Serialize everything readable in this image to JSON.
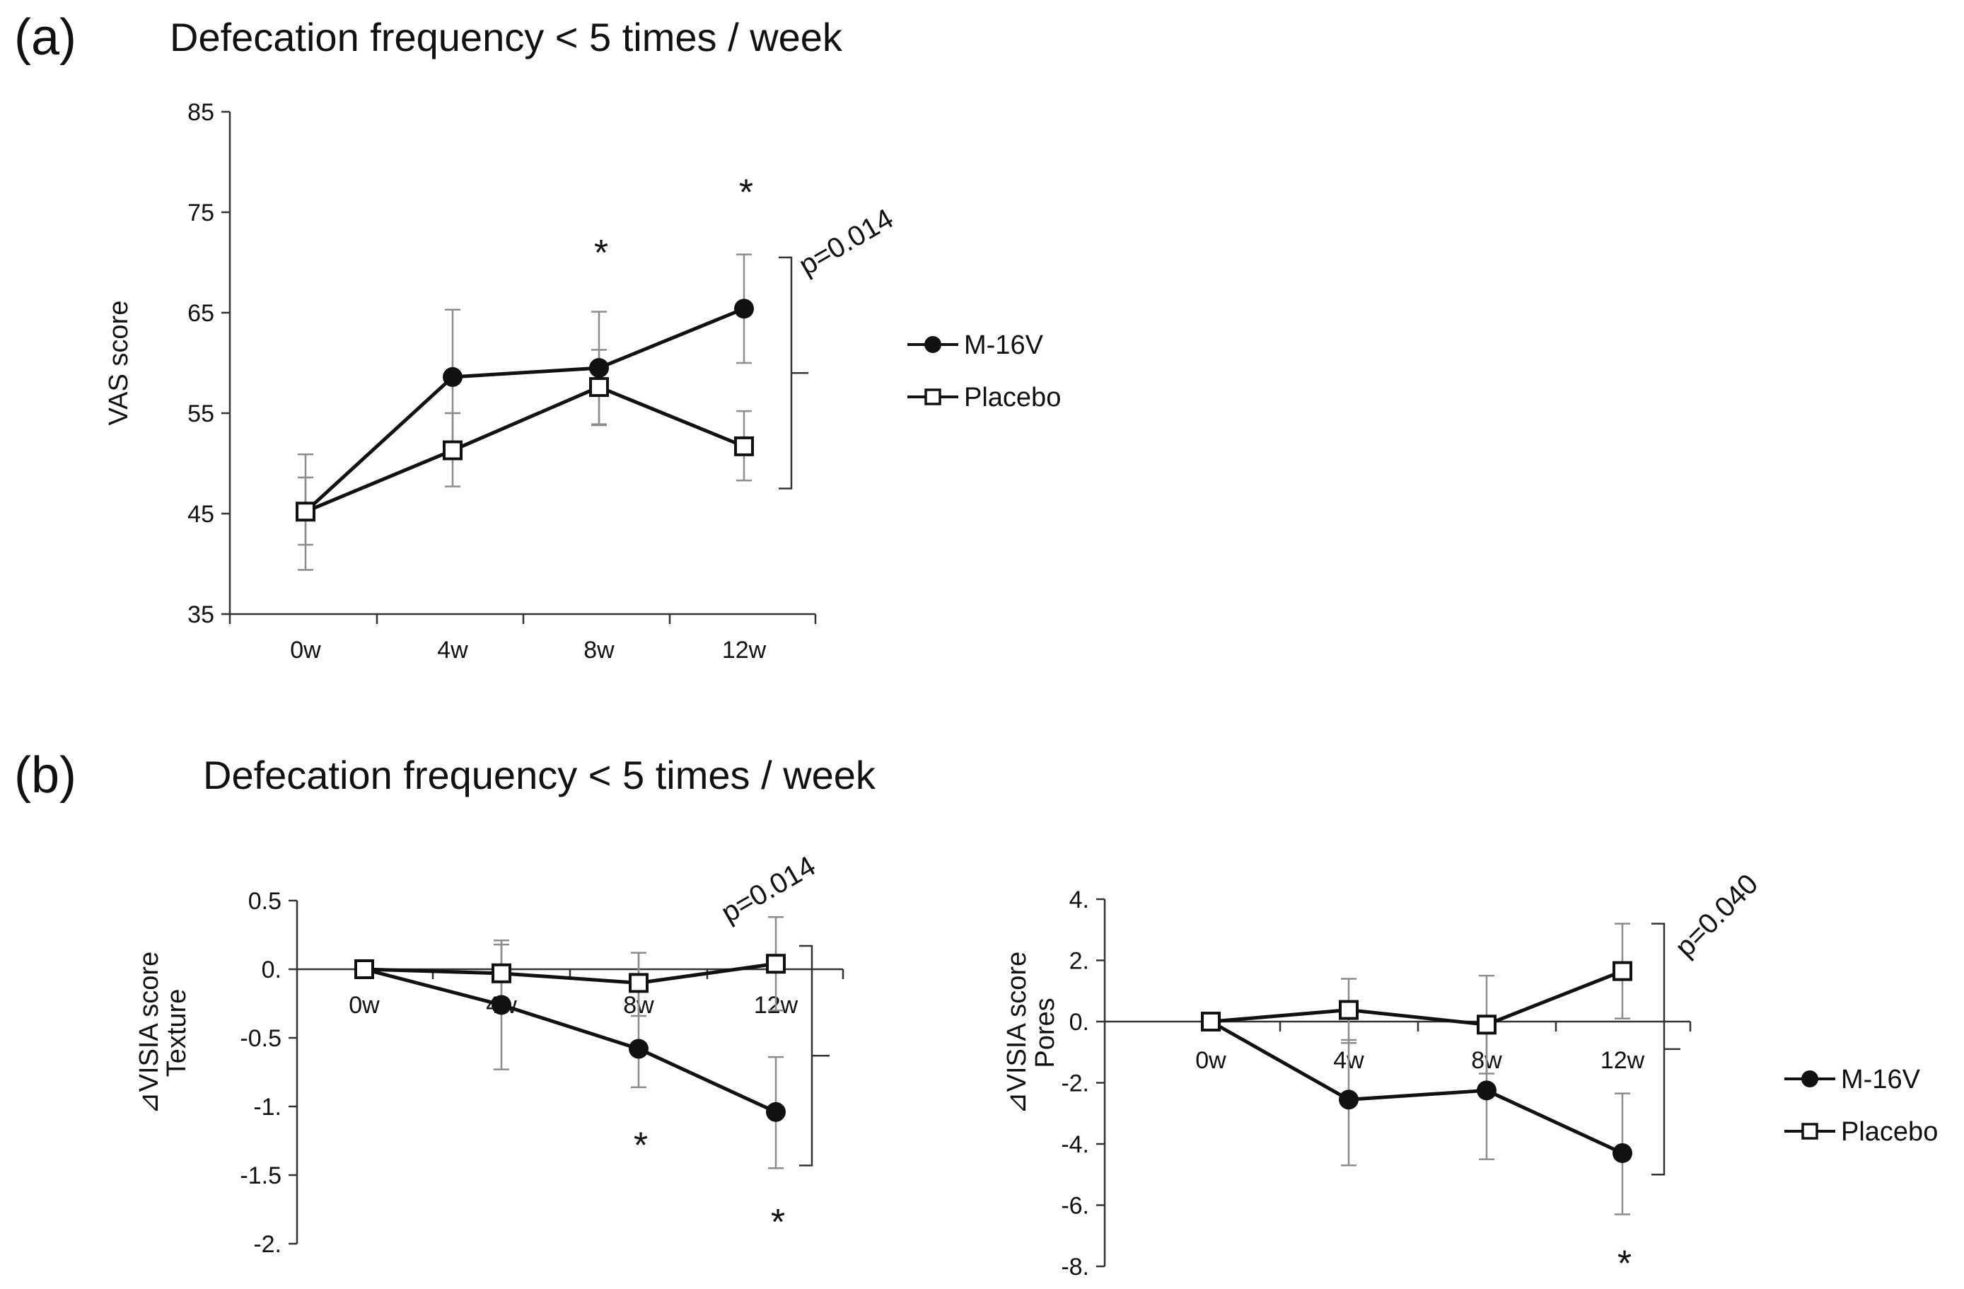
{
  "panel_a": {
    "letter": "(a)",
    "title": "Defecation frequency < 5 times / week"
  },
  "panel_b": {
    "letter": "(b)",
    "title": "Defecation frequency < 5 times / week"
  },
  "colors": {
    "line": "#111111",
    "errorbar": "#8c8c8c",
    "axis": "#333333"
  },
  "chart_data": [
    {
      "id": "vas",
      "type": "line",
      "title": "Defecation frequency < 5 times / week",
      "xlabel": "",
      "ylabel": "VAS score",
      "categories": [
        "0w",
        "4w",
        "8w",
        "12w"
      ],
      "ylim": [
        35,
        85
      ],
      "yticks": [
        35,
        45,
        55,
        65,
        75,
        85
      ],
      "ytick_labels": [
        "35",
        "45",
        "55",
        "65",
        "75",
        "85"
      ],
      "series": [
        {
          "name": "M-16V",
          "marker": "filled-circle",
          "values": [
            45.2,
            58.6,
            59.5,
            65.4
          ],
          "err_upper": [
            50.9,
            65.3,
            65.1,
            70.8
          ],
          "err_lower": [
            39.4,
            51.8,
            53.8,
            60.0
          ]
        },
        {
          "name": "Placebo",
          "marker": "open-square",
          "values": [
            45.2,
            51.3,
            57.6,
            51.7
          ],
          "err_upper": [
            48.6,
            55.0,
            61.3,
            55.2
          ],
          "err_lower": [
            41.9,
            47.7,
            53.9,
            48.3
          ]
        }
      ],
      "annotations": [
        {
          "text": "*",
          "category": "8w",
          "y": 71
        },
        {
          "text": "*",
          "category": "12w",
          "y": 77
        }
      ],
      "bracket": {
        "p_text": "p=0.014",
        "y_top": 70.5,
        "y_bottom": 47.5
      }
    },
    {
      "id": "texture",
      "type": "line",
      "xlabel": "",
      "ylabel": "⊿VISIA score",
      "ylabel2": "Texture",
      "categories": [
        "0w",
        "4w",
        "8w",
        "12w"
      ],
      "ylim": [
        -2.0,
        0.5
      ],
      "yticks": [
        -2.0,
        -1.5,
        -1.0,
        -0.5,
        0.0,
        0.5
      ],
      "ytick_labels": [
        "-2.",
        "-1.5",
        "-1.",
        "-0.5",
        "0.",
        "0.5"
      ],
      "series": [
        {
          "name": "M-16V",
          "marker": "filled-circle",
          "values": [
            0.0,
            -0.26,
            -0.58,
            -1.04
          ],
          "err_upper": [
            0.0,
            0.18,
            0.12,
            -0.64
          ],
          "err_lower": [
            0.0,
            -0.73,
            -0.86,
            -1.45
          ]
        },
        {
          "name": "Placebo",
          "marker": "open-square",
          "values": [
            0.0,
            -0.03,
            -0.1,
            0.04
          ],
          "err_upper": [
            0.0,
            0.21,
            0.12,
            0.38
          ],
          "err_lower": [
            0.0,
            -0.27,
            -0.34,
            -0.3
          ]
        }
      ],
      "annotations": [
        {
          "text": "*",
          "category": "8w",
          "y": -1.28
        },
        {
          "text": "*",
          "category": "12w",
          "y": -1.84
        }
      ],
      "bracket": {
        "p_text": "p=0.014",
        "y_top": 0.17,
        "y_bottom": -1.43
      }
    },
    {
      "id": "pores",
      "type": "line",
      "xlabel": "",
      "ylabel": "⊿VISIA score",
      "ylabel2": "Pores",
      "categories": [
        "0w",
        "4w",
        "8w",
        "12w"
      ],
      "ylim": [
        -8.0,
        4.0
      ],
      "yticks": [
        -8.0,
        -6.0,
        -4.0,
        -2.0,
        0.0,
        2.0,
        4.0
      ],
      "ytick_labels": [
        "-8.",
        "-6.",
        "-4.",
        "-2.",
        "0.",
        "2.",
        "4."
      ],
      "series": [
        {
          "name": "M-16V",
          "marker": "filled-circle",
          "values": [
            0.0,
            -2.55,
            -2.25,
            -4.3
          ],
          "err_upper": [
            0.0,
            -0.6,
            0.0,
            -2.35
          ],
          "err_lower": [
            0.0,
            -4.7,
            -4.5,
            -6.3
          ]
        },
        {
          "name": "Placebo",
          "marker": "open-square",
          "values": [
            0.0,
            0.38,
            -0.1,
            1.65
          ],
          "err_upper": [
            0.0,
            1.4,
            1.5,
            3.2
          ],
          "err_lower": [
            0.0,
            -0.7,
            -1.7,
            0.1
          ]
        }
      ],
      "annotations": [
        {
          "text": "*",
          "category": "12w",
          "y": -7.9
        }
      ],
      "bracket": {
        "p_text": "p=0.040",
        "y_top": 3.2,
        "y_bottom": -5.0
      }
    }
  ],
  "legend_a": {
    "items": [
      "M-16V",
      "Placebo"
    ]
  },
  "legend_b": {
    "items": [
      "M-16V",
      "Placebo"
    ]
  }
}
